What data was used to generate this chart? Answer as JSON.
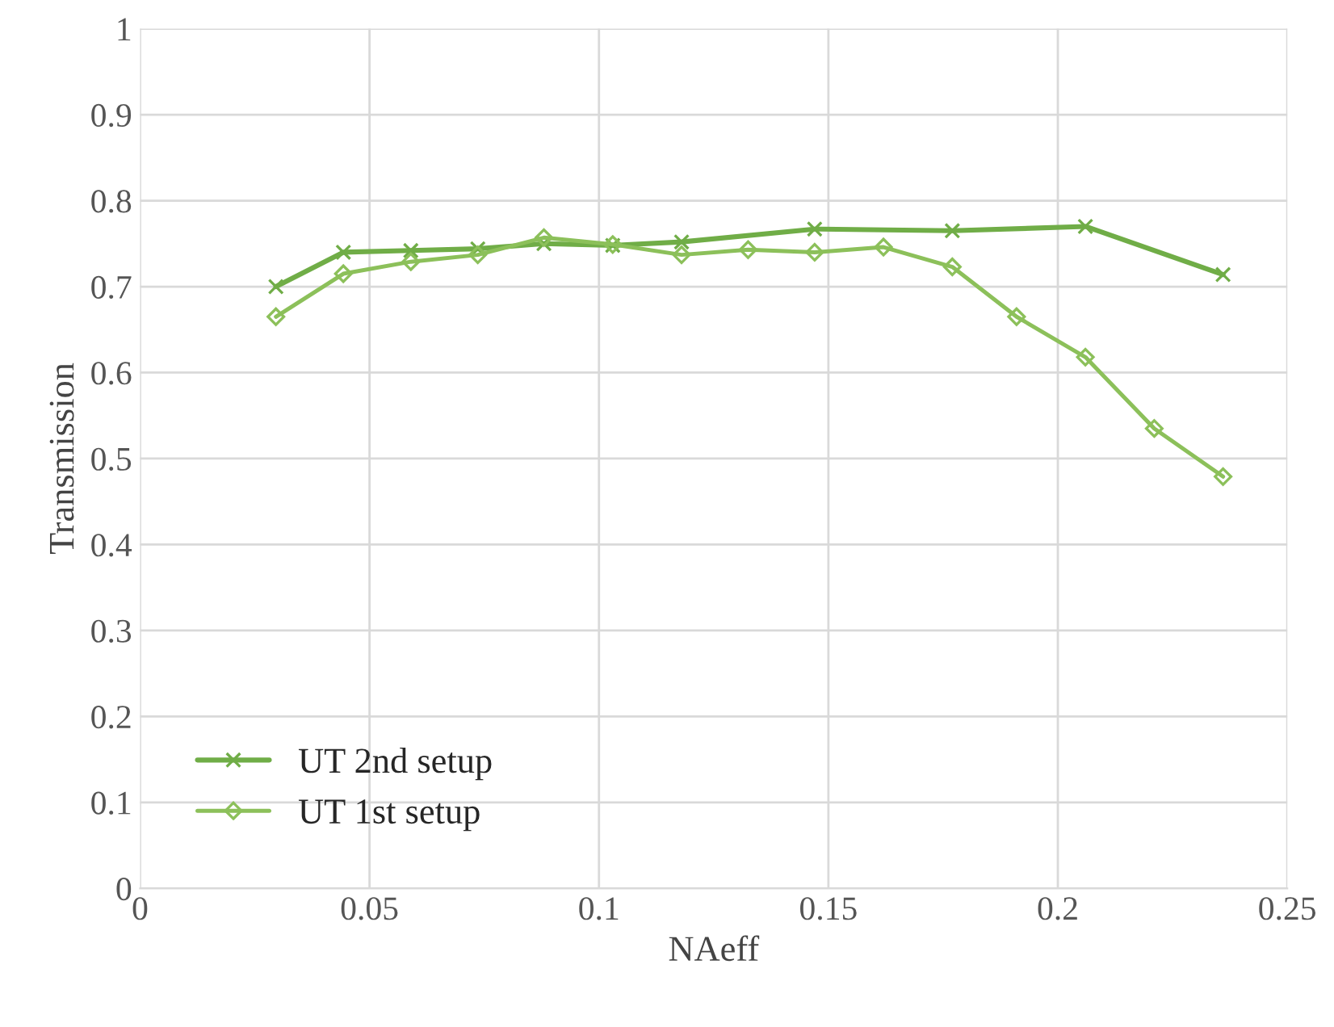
{
  "chart_data": {
    "type": "line",
    "xlabel": "NAeff",
    "ylabel": "Transmission",
    "xlim": [
      0,
      0.25
    ],
    "xticks": [
      0,
      0.05,
      0.1,
      0.15,
      0.2,
      0.25
    ],
    "ylim": [
      0,
      1
    ],
    "yticks": [
      0,
      0.1,
      0.2,
      0.3,
      0.4,
      0.5,
      0.6,
      0.7,
      0.8,
      0.9,
      1
    ],
    "grid": true,
    "legend": "bottom left",
    "series": [
      {
        "name": "UT 2nd setup",
        "color": "#70ad47",
        "marker": "cross",
        "x": [
          0.0296,
          0.0443,
          0.059,
          0.0736,
          0.088,
          0.103,
          0.118,
          0.147,
          0.177,
          0.206,
          0.236
        ],
        "values": [
          0.7,
          0.74,
          0.742,
          0.744,
          0.75,
          0.748,
          0.752,
          0.767,
          0.765,
          0.77,
          0.714
        ]
      },
      {
        "name": "UT 1st setup",
        "color": "#8cc05a",
        "marker": "diamond",
        "x": [
          0.0296,
          0.0443,
          0.059,
          0.0736,
          0.088,
          0.103,
          0.118,
          0.1325,
          0.147,
          0.162,
          0.177,
          0.191,
          0.206,
          0.221,
          0.236
        ],
        "values": [
          0.665,
          0.715,
          0.729,
          0.737,
          0.757,
          0.749,
          0.737,
          0.743,
          0.74,
          0.746,
          0.723,
          0.665,
          0.618,
          0.535,
          0.479
        ]
      }
    ]
  }
}
